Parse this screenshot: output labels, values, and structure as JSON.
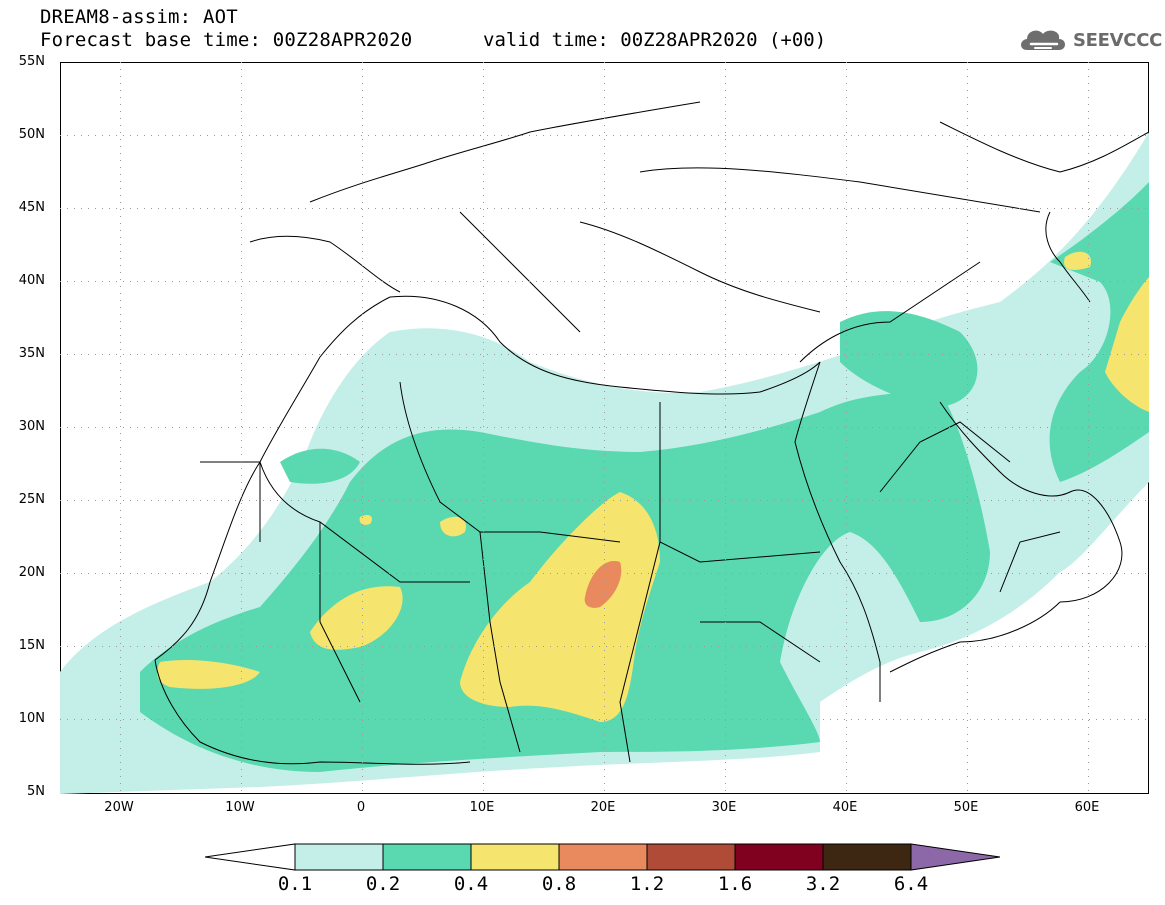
{
  "title": {
    "line1": "DREAM8-assim: AOT",
    "line2_base": "Forecast base time: 00Z28APR2020",
    "line2_valid": "valid time: 00Z28APR2020 (+00)"
  },
  "logo": {
    "text": "SEEVCCC",
    "icon": "cloud-icon"
  },
  "map": {
    "lat_labels": [
      "55N",
      "50N",
      "45N",
      "40N",
      "35N",
      "30N",
      "25N",
      "20N",
      "15N",
      "10N",
      "5N"
    ],
    "lon_labels": [
      "20W",
      "10W",
      "0",
      "10E",
      "20E",
      "30E",
      "40E",
      "50E",
      "60E"
    ],
    "grid": "dotted",
    "extent": {
      "lon": [
        -25,
        65
      ],
      "lat": [
        5,
        55
      ]
    }
  },
  "colorbar": {
    "labels": [
      "0.1",
      "0.2",
      "0.4",
      "0.8",
      "1.2",
      "1.6",
      "3.2",
      "6.4"
    ],
    "colors": [
      "#ffffff",
      "#c4efe8",
      "#5ad8b0",
      "#f5e46e",
      "#e88a5e",
      "#b04b37",
      "#800020",
      "#3d2612",
      "#8c68a8"
    ]
  }
}
